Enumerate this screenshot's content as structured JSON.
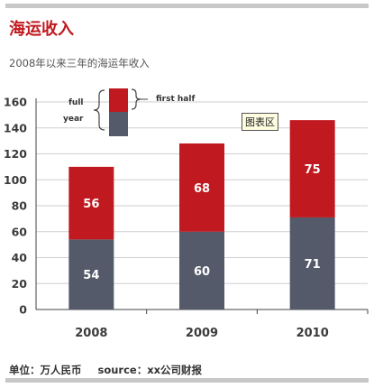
{
  "title": "海运收入",
  "subtitle": "2008年以来三年的海运年收入",
  "chart_area_tag": "图表区",
  "footer": {
    "unit": "单位：万人民币",
    "source": "source：xx公司财报"
  },
  "legend": {
    "left_line1": "full",
    "left_line2": "year",
    "right": "first half"
  },
  "colors": {
    "first_half": "#c0191f",
    "second_part": "#555a6b",
    "grid": "#cfcfcf",
    "rule": "#c8c8c8"
  },
  "chart_data": {
    "type": "bar",
    "stacked": true,
    "categories": [
      "2008",
      "2009",
      "2010"
    ],
    "series": [
      {
        "name": "",
        "values": [
          54,
          60,
          71
        ],
        "color": "#555a6b"
      },
      {
        "name": "first half",
        "values": [
          56,
          68,
          75
        ],
        "color": "#c0191f"
      }
    ],
    "yticks": [
      0,
      20,
      40,
      60,
      80,
      100,
      120,
      140,
      160
    ],
    "ylim": [
      0,
      160
    ],
    "grid": true
  }
}
